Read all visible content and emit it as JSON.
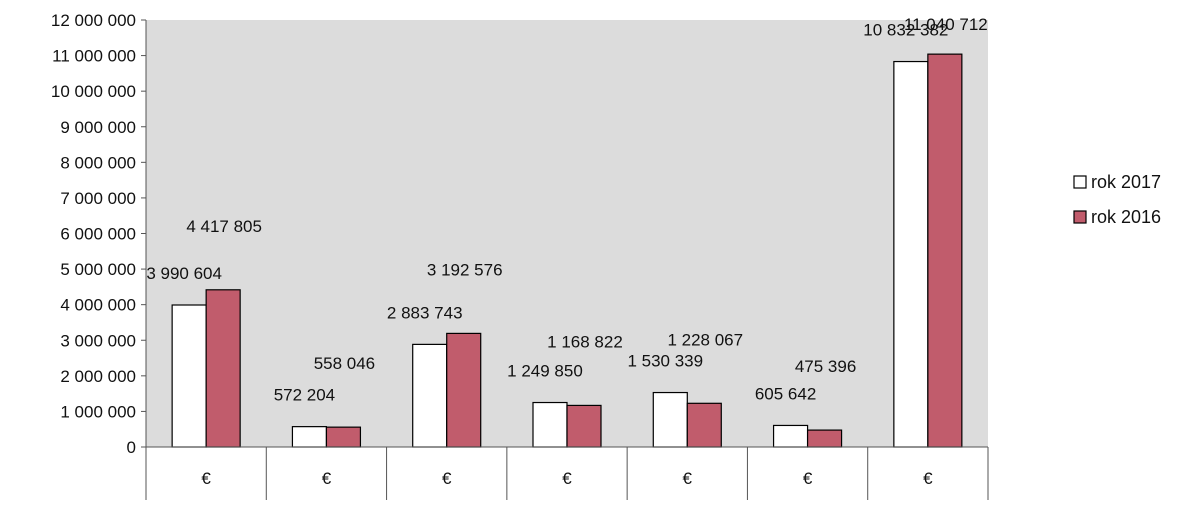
{
  "chart_data": {
    "type": "bar",
    "categories": [
      "€",
      "€",
      "€",
      "€",
      "€",
      "€",
      "€"
    ],
    "series": [
      {
        "name": "rok 2017",
        "color": "#ffffff",
        "values": [
          3990604,
          572204,
          2883743,
          1249850,
          1530339,
          605642,
          10832382
        ]
      },
      {
        "name": "rok 2016",
        "color": "#c15c6c",
        "values": [
          4417805,
          558046,
          3192576,
          1168822,
          1228067,
          475396,
          11040712
        ]
      }
    ],
    "data_labels": [
      [
        "3 990 604",
        "572 204",
        "2 883 743",
        "1 249 850",
        "1 530 339",
        "605 642",
        "10 832 382"
      ],
      [
        "4 417 805",
        "558 046",
        "3 192 576",
        "1 168 822",
        "1 228 067",
        "475 396",
        "11 040 712"
      ]
    ],
    "yticks": [
      "0",
      "1 000 000",
      "2 000 000",
      "3 000 000",
      "4 000 000",
      "5 000 000",
      "6 000 000",
      "7 000 000",
      "8 000 000",
      "9 000 000",
      "10 000 000",
      "11 000 000",
      "12 000 000"
    ],
    "ylim": [
      0,
      12000000
    ],
    "title": "",
    "xlabel": "",
    "ylabel": "",
    "grid": false,
    "legend_position": "right",
    "plot_background": "#dcdcdc"
  }
}
